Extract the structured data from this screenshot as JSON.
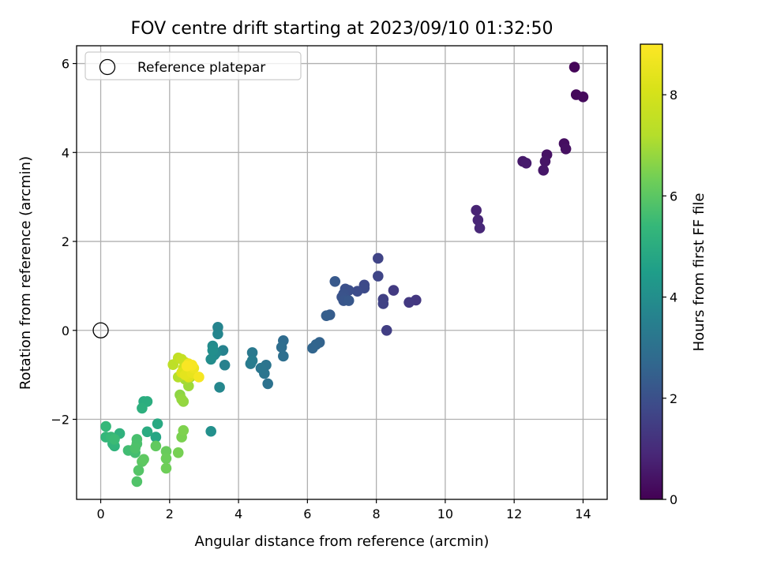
{
  "chart_data": {
    "type": "scatter",
    "title": "FOV centre drift starting at 2023/09/10 01:32:50",
    "xlabel": "Angular distance from reference (arcmin)",
    "ylabel": "Rotation from reference (arcmin)",
    "xlim": [
      -0.7,
      14.7
    ],
    "ylim": [
      -3.8,
      6.4
    ],
    "xticks": [
      0,
      2,
      4,
      6,
      8,
      10,
      12,
      14
    ],
    "yticks": [
      -2,
      0,
      2,
      4,
      6
    ],
    "grid": true,
    "legend": {
      "placement": "top-left",
      "entries": [
        "Reference platepar"
      ]
    },
    "reference_point": {
      "x": 0,
      "y": 0
    },
    "colorbar": {
      "label": "Hours from first FF file",
      "min": 0,
      "max": 9,
      "ticks": [
        0,
        2,
        4,
        6,
        8
      ],
      "colormap": "viridis"
    },
    "points": [
      [
        13.75,
        5.92,
        0.1
      ],
      [
        13.8,
        5.3,
        0.15
      ],
      [
        14.0,
        5.25,
        0.2
      ],
      [
        13.45,
        4.2,
        0.3
      ],
      [
        13.5,
        4.08,
        0.35
      ],
      [
        12.95,
        3.95,
        0.4
      ],
      [
        12.9,
        3.8,
        0.45
      ],
      [
        12.85,
        3.6,
        0.5
      ],
      [
        12.25,
        3.8,
        0.55
      ],
      [
        12.35,
        3.76,
        0.6
      ],
      [
        10.9,
        2.7,
        0.8
      ],
      [
        10.95,
        2.48,
        0.85
      ],
      [
        11.0,
        2.3,
        0.9
      ],
      [
        9.15,
        0.68,
        1.3
      ],
      [
        8.95,
        0.63,
        1.35
      ],
      [
        8.5,
        0.9,
        1.4
      ],
      [
        8.3,
        0.0,
        1.5
      ],
      [
        8.2,
        0.7,
        1.55
      ],
      [
        8.2,
        0.6,
        1.6
      ],
      [
        8.05,
        1.62,
        1.65
      ],
      [
        8.05,
        1.22,
        1.7
      ],
      [
        7.65,
        1.02,
        1.8
      ],
      [
        7.65,
        0.95,
        1.85
      ],
      [
        7.45,
        0.88,
        1.9
      ],
      [
        7.2,
        0.9,
        1.95
      ],
      [
        7.1,
        0.93,
        2.0
      ],
      [
        7.05,
        0.82,
        2.05
      ],
      [
        7.0,
        0.75,
        2.1
      ],
      [
        7.05,
        0.67,
        2.15
      ],
      [
        7.2,
        0.67,
        2.2
      ],
      [
        6.8,
        1.1,
        2.25
      ],
      [
        6.65,
        0.35,
        2.35
      ],
      [
        6.55,
        0.33,
        2.4
      ],
      [
        6.35,
        -0.27,
        2.55
      ],
      [
        6.25,
        -0.32,
        2.6
      ],
      [
        6.15,
        -0.4,
        2.65
      ],
      [
        5.3,
        -0.23,
        2.85
      ],
      [
        5.25,
        -0.38,
        2.9
      ],
      [
        5.3,
        -0.58,
        2.95
      ],
      [
        4.85,
        -1.2,
        3.05
      ],
      [
        4.8,
        -0.78,
        3.1
      ],
      [
        4.75,
        -0.97,
        3.15
      ],
      [
        4.65,
        -0.85,
        3.2
      ],
      [
        4.4,
        -0.5,
        3.3
      ],
      [
        4.35,
        -0.75,
        3.35
      ],
      [
        4.4,
        -0.68,
        3.4
      ],
      [
        3.6,
        -0.78,
        3.55
      ],
      [
        3.55,
        -0.45,
        3.6
      ],
      [
        3.4,
        0.07,
        3.65
      ],
      [
        3.4,
        -0.08,
        3.7
      ],
      [
        3.45,
        -1.28,
        3.75
      ],
      [
        3.35,
        -0.5,
        3.8
      ],
      [
        3.3,
        -0.55,
        3.85
      ],
      [
        3.25,
        -0.35,
        3.9
      ],
      [
        3.2,
        -0.65,
        3.95
      ],
      [
        3.25,
        -0.45,
        4.0
      ],
      [
        3.2,
        -2.27,
        4.05
      ],
      [
        1.6,
        -2.4,
        4.8
      ],
      [
        1.65,
        -2.1,
        4.9
      ],
      [
        1.35,
        -2.28,
        4.95
      ],
      [
        1.25,
        -1.6,
        5.0
      ],
      [
        1.35,
        -1.6,
        5.05
      ],
      [
        1.2,
        -1.75,
        5.1
      ],
      [
        0.55,
        -2.32,
        5.2
      ],
      [
        0.4,
        -2.6,
        5.25
      ],
      [
        0.35,
        -2.55,
        5.3
      ],
      [
        0.15,
        -2.4,
        5.35
      ],
      [
        0.15,
        -2.16,
        5.4
      ],
      [
        0.3,
        -2.4,
        5.45
      ],
      [
        0.4,
        -2.45,
        5.5
      ],
      [
        0.8,
        -2.7,
        5.6
      ],
      [
        1.0,
        -2.75,
        5.65
      ],
      [
        1.05,
        -2.45,
        5.7
      ],
      [
        1.05,
        -2.55,
        5.75
      ],
      [
        1.0,
        -2.65,
        5.8
      ],
      [
        1.05,
        -3.4,
        5.85
      ],
      [
        1.1,
        -3.15,
        5.9
      ],
      [
        1.2,
        -2.95,
        6.0
      ],
      [
        1.25,
        -2.9,
        6.05
      ],
      [
        1.6,
        -2.6,
        6.1
      ],
      [
        1.9,
        -2.72,
        6.2
      ],
      [
        1.9,
        -2.88,
        6.25
      ],
      [
        1.9,
        -3.1,
        6.3
      ],
      [
        2.25,
        -2.75,
        6.4
      ],
      [
        2.35,
        -2.4,
        6.45
      ],
      [
        2.4,
        -2.25,
        6.5
      ],
      [
        2.3,
        -1.45,
        6.7
      ],
      [
        2.4,
        -1.6,
        6.75
      ],
      [
        2.35,
        -1.55,
        6.8
      ],
      [
        2.55,
        -1.25,
        6.9
      ],
      [
        2.45,
        -1.1,
        7.0
      ],
      [
        2.6,
        -1.05,
        7.1
      ],
      [
        2.25,
        -1.05,
        7.2
      ],
      [
        2.1,
        -0.77,
        7.4
      ],
      [
        2.25,
        -0.62,
        7.5
      ],
      [
        2.35,
        -0.65,
        7.6
      ],
      [
        2.45,
        -0.72,
        7.7
      ],
      [
        2.4,
        -0.85,
        7.8
      ],
      [
        2.5,
        -0.92,
        7.9
      ],
      [
        2.55,
        -0.8,
        8.0
      ],
      [
        2.6,
        -0.88,
        8.1
      ],
      [
        2.35,
        -0.95,
        8.2
      ],
      [
        2.55,
        -1.05,
        8.3
      ],
      [
        2.45,
        -1.0,
        8.4
      ],
      [
        2.65,
        -0.95,
        8.5
      ],
      [
        2.7,
        -0.85,
        8.6
      ],
      [
        2.55,
        -0.75,
        8.7
      ],
      [
        2.85,
        -1.05,
        8.8
      ],
      [
        2.65,
        -0.78,
        8.85
      ],
      [
        2.5,
        -0.8,
        8.9
      ]
    ]
  }
}
